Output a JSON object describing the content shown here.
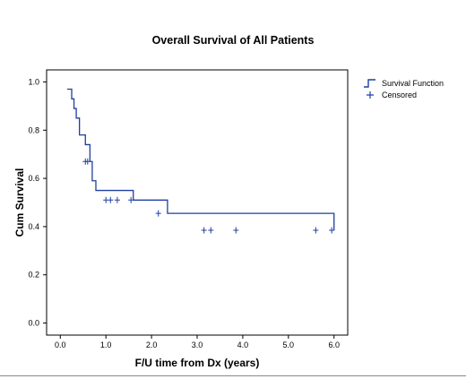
{
  "chart_data": {
    "type": "line",
    "subtype": "kaplan-meier step",
    "title": "Overall Survival of All Patients",
    "xlabel": "F/U time from Dx (years)",
    "ylabel": "Cum Survival",
    "xlim": [
      -0.3,
      6.3
    ],
    "ylim": [
      -0.05,
      1.05
    ],
    "xticks": [
      0.0,
      1.0,
      2.0,
      3.0,
      4.0,
      5.0,
      6.0
    ],
    "xtick_labels": [
      "0.0",
      "1.0",
      "2.0",
      "3.0",
      "4.0",
      "5.0",
      "6.0"
    ],
    "yticks": [
      0.0,
      0.2,
      0.4,
      0.6,
      0.8,
      1.0
    ],
    "ytick_labels": [
      "0.0",
      "0.2",
      "0.4",
      "0.6",
      "0.8",
      "1.0"
    ],
    "grid": false,
    "legend_position": "top-right outside plot",
    "color": "#1f3f9f",
    "series": [
      {
        "name": "Survival Function",
        "kind": "step",
        "x": [
          0.15,
          0.25,
          0.3,
          0.35,
          0.42,
          0.55,
          0.65,
          0.7,
          0.78,
          1.6,
          2.35,
          6.0
        ],
        "y": [
          0.97,
          0.93,
          0.89,
          0.85,
          0.78,
          0.74,
          0.67,
          0.59,
          0.55,
          0.51,
          0.455,
          0.385
        ]
      },
      {
        "name": "Censored",
        "kind": "marker",
        "x": [
          0.55,
          0.6,
          1.0,
          1.1,
          1.25,
          1.55,
          2.15,
          3.15,
          3.3,
          3.85,
          5.6,
          5.95
        ],
        "y": [
          0.67,
          0.67,
          0.51,
          0.51,
          0.51,
          0.51,
          0.455,
          0.385,
          0.385,
          0.385,
          0.385,
          0.385
        ]
      }
    ]
  },
  "legend": {
    "survival_label": "Survival Function",
    "censored_label": "Censored"
  }
}
